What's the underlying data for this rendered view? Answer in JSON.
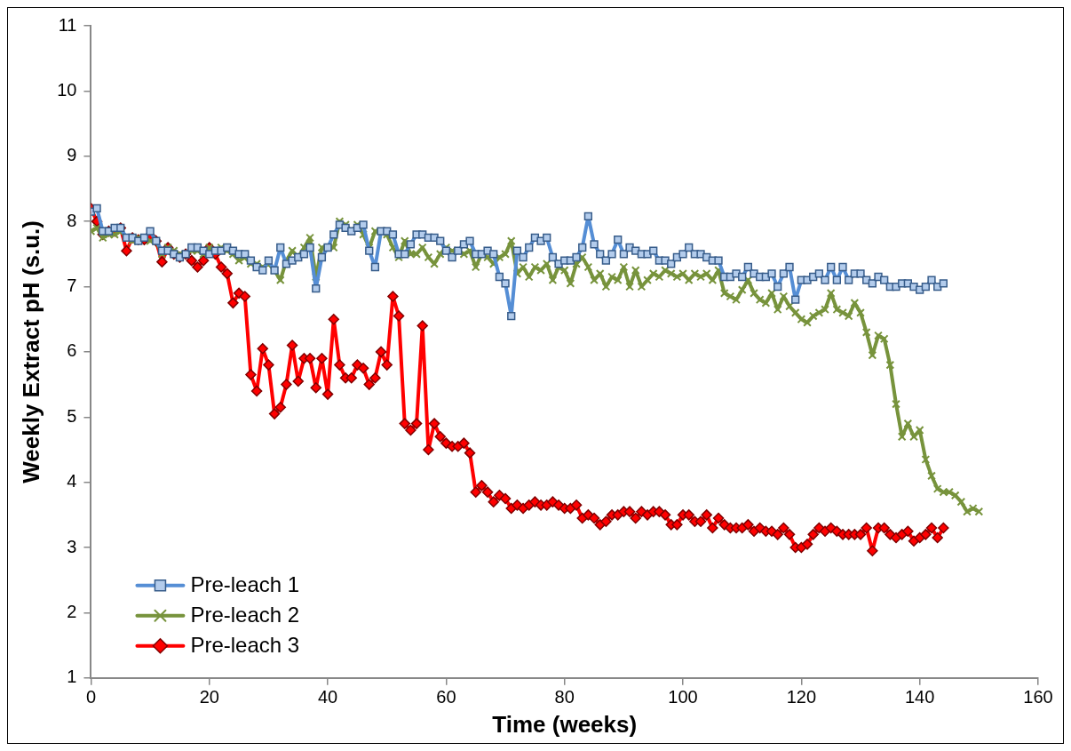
{
  "chart_data": {
    "type": "line",
    "xlabel": "Time (weeks)",
    "ylabel": "Weekly Extract pH (s.u.)",
    "x": [
      0,
      1,
      2,
      3,
      4,
      5,
      6,
      7,
      8,
      9,
      10,
      11,
      12,
      13,
      14,
      15,
      16,
      17,
      18,
      19,
      20,
      21,
      22,
      23,
      24,
      25,
      26,
      27,
      28,
      29,
      30,
      31,
      32,
      33,
      34,
      35,
      36,
      37,
      38,
      39,
      40,
      41,
      42,
      43,
      44,
      45,
      46,
      47,
      48,
      49,
      50,
      51,
      52,
      53,
      54,
      55,
      56,
      57,
      58,
      59,
      60,
      61,
      62,
      63,
      64,
      65,
      66,
      67,
      68,
      69,
      70,
      71,
      72,
      73,
      74,
      75,
      76,
      77,
      78,
      79,
      80,
      81,
      82,
      83,
      84,
      85,
      86,
      87,
      88,
      89,
      90,
      91,
      92,
      93,
      94,
      95,
      96,
      97,
      98,
      99,
      100,
      101,
      102,
      103,
      104,
      105,
      106,
      107,
      108,
      109,
      110,
      111,
      112,
      113,
      114,
      115,
      116,
      117,
      118,
      119,
      120,
      121,
      122,
      123,
      124,
      125,
      126,
      127,
      128,
      129,
      130,
      131,
      132,
      133,
      134,
      135,
      136,
      137,
      138,
      139,
      140,
      141,
      142,
      143,
      144,
      145,
      146,
      147,
      148,
      149,
      150
    ],
    "series": [
      {
        "name": "Pre-leach 1",
        "color": "#558ed5",
        "marker": "square",
        "values": [
          8.15,
          8.2,
          7.85,
          7.85,
          7.9,
          7.9,
          7.75,
          7.75,
          7.7,
          7.75,
          7.85,
          7.7,
          7.55,
          7.55,
          7.5,
          7.45,
          7.5,
          7.6,
          7.6,
          7.55,
          7.5,
          7.55,
          7.55,
          7.6,
          7.55,
          7.5,
          7.5,
          7.4,
          7.3,
          7.25,
          7.4,
          7.25,
          7.6,
          7.35,
          7.4,
          7.45,
          7.5,
          7.6,
          6.97,
          7.45,
          7.6,
          7.8,
          7.95,
          7.9,
          7.85,
          7.9,
          7.95,
          7.55,
          7.3,
          7.85,
          7.85,
          7.8,
          7.5,
          7.5,
          7.65,
          7.8,
          7.8,
          7.75,
          7.75,
          7.7,
          7.55,
          7.45,
          7.55,
          7.65,
          7.7,
          7.5,
          7.5,
          7.55,
          7.5,
          7.15,
          7.05,
          6.55,
          7.55,
          7.45,
          7.6,
          7.75,
          7.7,
          7.75,
          7.45,
          7.35,
          7.4,
          7.4,
          7.45,
          7.6,
          8.08,
          7.65,
          7.5,
          7.4,
          7.5,
          7.72,
          7.5,
          7.6,
          7.55,
          7.5,
          7.5,
          7.55,
          7.4,
          7.4,
          7.35,
          7.45,
          7.5,
          7.6,
          7.5,
          7.5,
          7.45,
          7.4,
          7.4,
          7.15,
          7.15,
          7.2,
          7.15,
          7.3,
          7.2,
          7.15,
          7.15,
          7.2,
          7.0,
          7.2,
          7.3,
          6.8,
          7.1,
          7.1,
          7.15,
          7.2,
          7.1,
          7.3,
          7.1,
          7.3,
          7.1,
          7.2,
          7.2,
          7.1,
          7.05,
          7.15,
          7.1,
          7.0,
          7.0,
          7.05,
          7.05,
          7.0,
          6.95,
          7.0,
          7.1,
          7.0,
          7.05,
          null,
          null,
          null,
          null,
          null,
          null
        ]
      },
      {
        "name": "Pre-leach 2",
        "color": "#77933c",
        "marker": "cross",
        "values": [
          7.85,
          7.9,
          7.75,
          7.8,
          7.8,
          7.85,
          7.75,
          7.7,
          7.75,
          7.75,
          7.7,
          7.7,
          7.5,
          7.6,
          7.55,
          7.5,
          7.5,
          7.55,
          7.55,
          7.5,
          7.6,
          7.55,
          7.6,
          7.55,
          7.5,
          7.4,
          7.45,
          7.35,
          7.35,
          7.3,
          7.35,
          7.25,
          7.1,
          7.4,
          7.55,
          7.45,
          7.6,
          7.75,
          7.15,
          7.6,
          7.6,
          7.6,
          8.0,
          7.95,
          7.85,
          7.95,
          7.8,
          7.6,
          7.85,
          7.85,
          7.8,
          7.6,
          7.45,
          7.7,
          7.5,
          7.5,
          7.6,
          7.45,
          7.35,
          7.5,
          7.6,
          7.55,
          7.55,
          7.5,
          7.55,
          7.3,
          7.5,
          7.45,
          7.35,
          7.45,
          7.5,
          7.7,
          7.2,
          7.3,
          7.15,
          7.3,
          7.25,
          7.35,
          7.1,
          7.3,
          7.25,
          7.05,
          7.35,
          7.45,
          7.3,
          7.1,
          7.2,
          7.0,
          7.15,
          7.1,
          7.3,
          7.0,
          7.25,
          7.0,
          7.1,
          7.2,
          7.15,
          7.25,
          7.2,
          7.15,
          7.2,
          7.1,
          7.2,
          7.15,
          7.2,
          7.1,
          7.25,
          6.9,
          6.85,
          6.8,
          6.95,
          7.1,
          6.9,
          6.8,
          6.75,
          6.9,
          6.65,
          6.85,
          6.7,
          6.6,
          6.5,
          6.45,
          6.55,
          6.6,
          6.65,
          6.9,
          6.65,
          6.6,
          6.55,
          6.75,
          6.6,
          6.3,
          5.95,
          6.25,
          6.2,
          5.8,
          5.2,
          4.7,
          4.9,
          4.7,
          4.8,
          4.35,
          4.1,
          3.9,
          3.85,
          3.85,
          3.8,
          3.7,
          3.55,
          3.6,
          3.55
        ]
      },
      {
        "name": "Pre-leach 3",
        "color": "#ff0000",
        "marker": "diamond",
        "values": [
          8.2,
          8.0,
          7.8,
          7.85,
          7.85,
          7.9,
          7.55,
          7.75,
          7.72,
          7.72,
          7.78,
          7.7,
          7.38,
          7.6,
          7.5,
          7.45,
          7.5,
          7.4,
          7.3,
          7.4,
          7.6,
          7.5,
          7.3,
          7.2,
          6.75,
          6.9,
          6.85,
          5.65,
          5.4,
          6.05,
          5.8,
          5.05,
          5.15,
          5.5,
          6.1,
          5.55,
          5.9,
          5.9,
          5.45,
          5.9,
          5.35,
          6.5,
          5.8,
          5.6,
          5.6,
          5.8,
          5.75,
          5.5,
          5.6,
          6.0,
          5.8,
          6.85,
          6.55,
          4.9,
          4.8,
          4.9,
          6.4,
          4.5,
          4.9,
          4.7,
          4.6,
          4.55,
          4.55,
          4.6,
          4.45,
          3.85,
          3.95,
          3.85,
          3.7,
          3.8,
          3.75,
          3.6,
          3.65,
          3.6,
          3.65,
          3.7,
          3.65,
          3.65,
          3.7,
          3.65,
          3.6,
          3.6,
          3.65,
          3.45,
          3.5,
          3.45,
          3.35,
          3.4,
          3.5,
          3.5,
          3.55,
          3.55,
          3.45,
          3.55,
          3.5,
          3.55,
          3.55,
          3.5,
          3.35,
          3.35,
          3.5,
          3.5,
          3.4,
          3.4,
          3.5,
          3.3,
          3.45,
          3.35,
          3.3,
          3.3,
          3.3,
          3.35,
          3.25,
          3.3,
          3.25,
          3.25,
          3.2,
          3.3,
          3.2,
          3.0,
          3.0,
          3.05,
          3.2,
          3.3,
          3.25,
          3.3,
          3.25,
          3.2,
          3.2,
          3.2,
          3.2,
          3.3,
          2.95,
          3.3,
          3.3,
          3.2,
          3.15,
          3.2,
          3.25,
          3.1,
          3.15,
          3.2,
          3.3,
          3.15,
          3.3,
          null,
          null,
          null,
          null,
          null,
          null
        ]
      }
    ],
    "xlim": [
      0,
      160
    ],
    "xticks": [
      0,
      20,
      40,
      60,
      80,
      100,
      120,
      140,
      160
    ],
    "ylim": [
      1,
      11
    ],
    "yticks": [
      1,
      2,
      3,
      4,
      5,
      6,
      7,
      8,
      9,
      10,
      11
    ],
    "grid": false,
    "legend": "bottom left",
    "line_style": "solid"
  }
}
